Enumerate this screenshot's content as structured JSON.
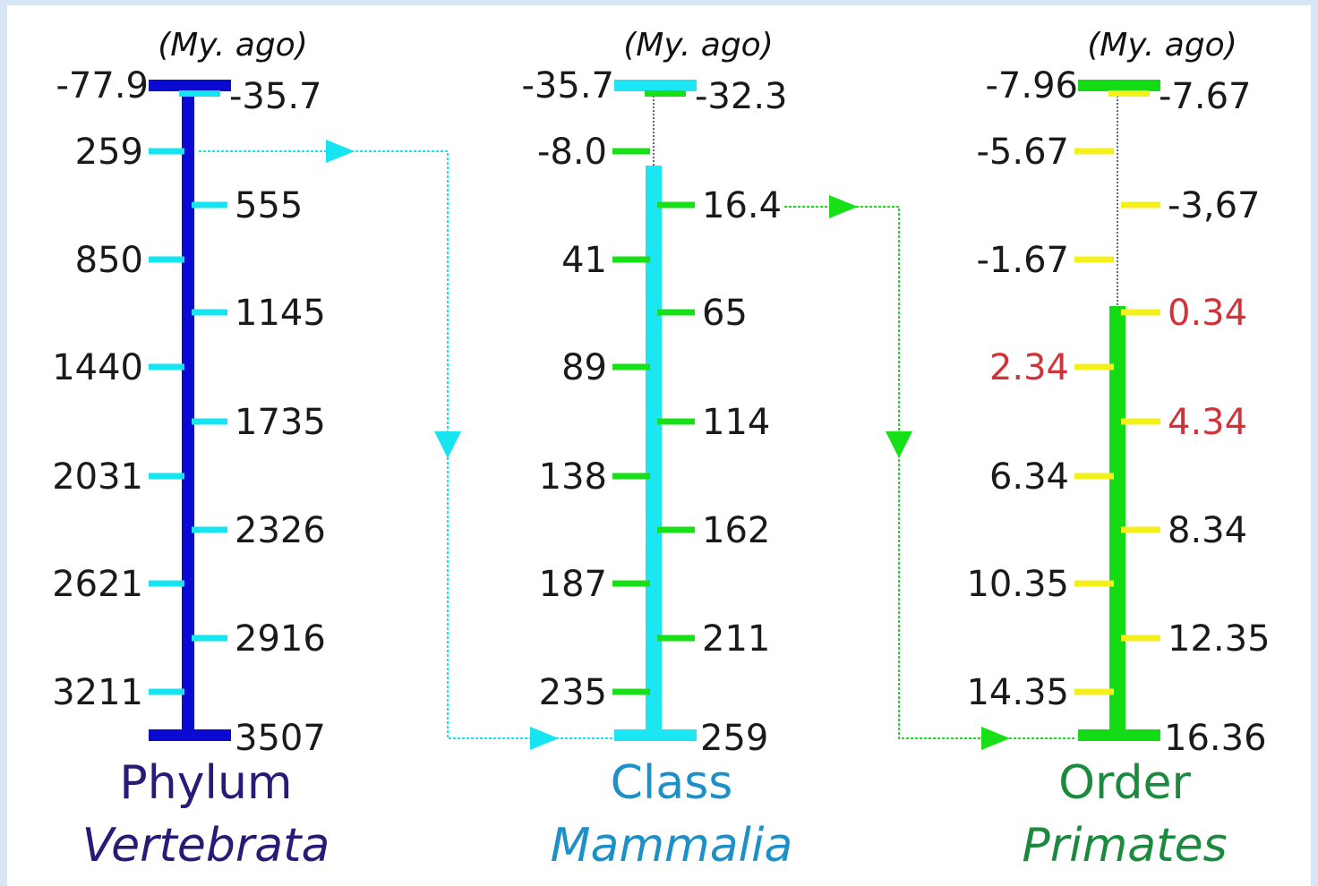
{
  "columns": [
    {
      "unit": "(My. ago)",
      "rank": "Phylum",
      "taxon": "Vertebrata",
      "colors": {
        "axis": "#0a0ad2",
        "tick": "#16e4f0",
        "rank": "#2a1a78",
        "taxon": "#2a1a78"
      },
      "top_left": "-77.9",
      "top_right": "-35.7",
      "left_ticks": [
        "259",
        "850",
        "1440",
        "2031",
        "2621",
        "3211"
      ],
      "right_ticks": [
        "555",
        "1145",
        "1735",
        "2326",
        "2916"
      ],
      "bottom": "3507",
      "highlight_labels": []
    },
    {
      "unit": "(My. ago)",
      "rank": "Class",
      "taxon": "Mammalia",
      "colors": {
        "axis": "#1ce6f4",
        "tick": "#18e018",
        "rank": "#1e90c8",
        "taxon": "#1e90c8"
      },
      "top_left": "-35.7",
      "top_right": "-32.3",
      "left_ticks": [
        "-8.0",
        "41",
        "89",
        "138",
        "187",
        "235"
      ],
      "right_ticks": [
        "16.4",
        "65",
        "114",
        "162",
        "211"
      ],
      "bottom": "259",
      "highlight_labels": []
    },
    {
      "unit": "(My. ago)",
      "rank": "Order",
      "taxon": "Primates",
      "colors": {
        "axis": "#14dc14",
        "tick": "#f4f01c",
        "rank": "#1c8a3e",
        "taxon": "#1c8a3e",
        "highlight": "#d0343a"
      },
      "top_left": "-7.96",
      "top_right": "-7.67",
      "left_ticks": [
        "-5.67",
        "-1.67",
        "2.34",
        "6.34",
        "10.35",
        "14.35"
      ],
      "right_ticks": [
        "-3,67",
        "0.34",
        "4.34",
        "8.34",
        "12.35"
      ],
      "bottom": "16.36",
      "highlight_labels": [
        "0.34",
        "2.34",
        "4.34"
      ]
    }
  ]
}
